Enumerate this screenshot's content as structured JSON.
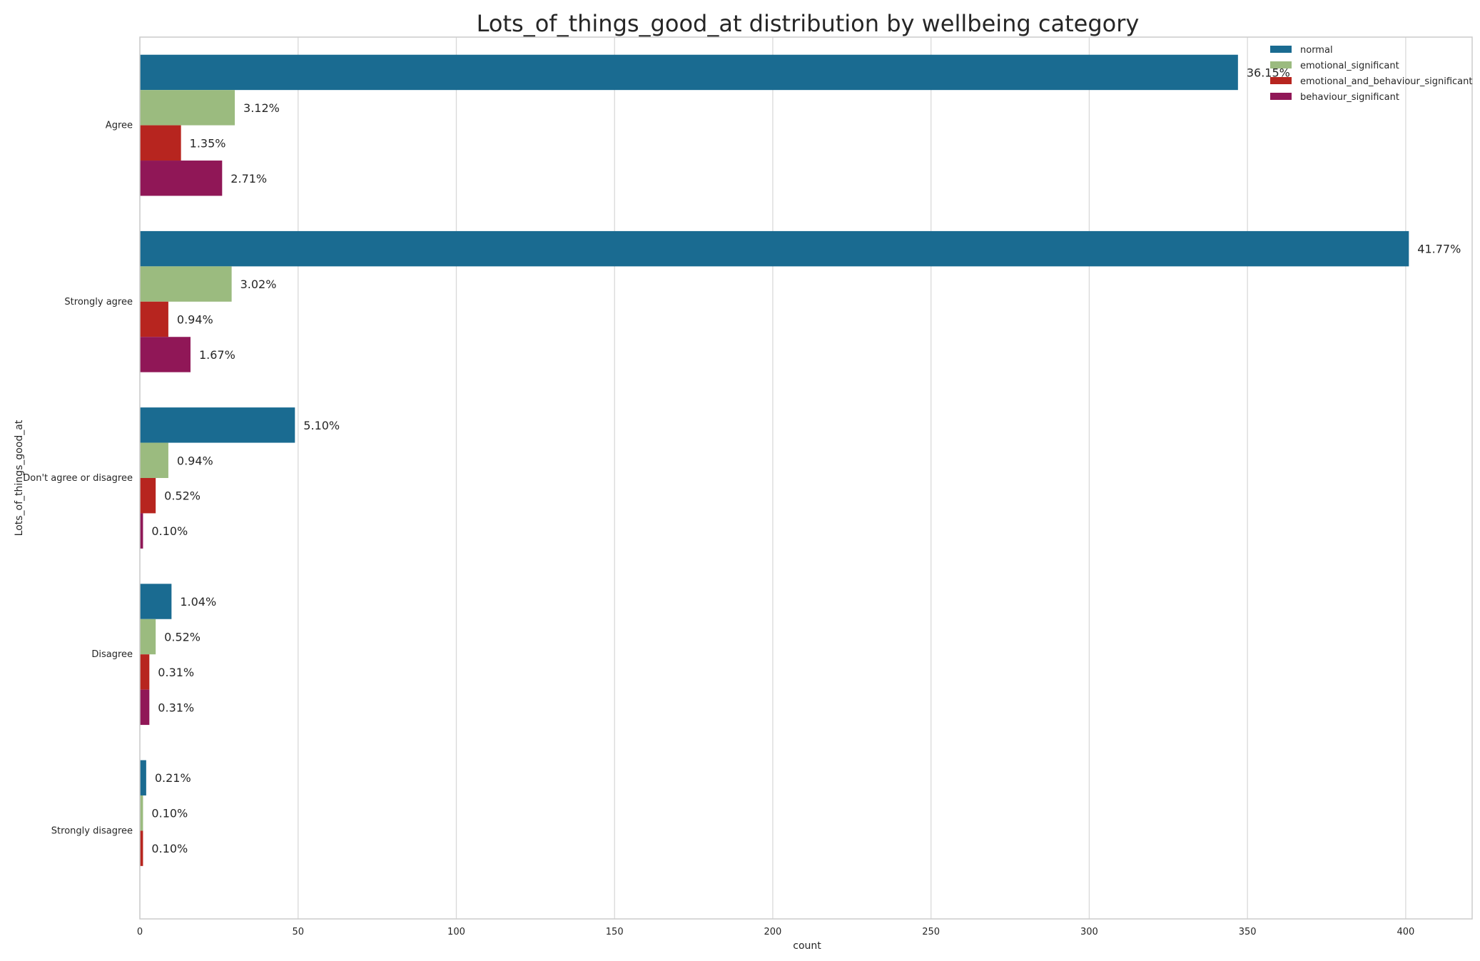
{
  "chart_data": {
    "type": "bar",
    "orientation": "horizontal",
    "title": "Lots_of_things_good_at distribution by wellbeing category",
    "xlabel": "count",
    "ylabel": "Lots_of_things_good_at",
    "xlim": [
      0,
      421
    ],
    "xticks": [
      "0",
      "50",
      "100",
      "150",
      "200",
      "250",
      "300",
      "350",
      "400"
    ],
    "grid": true,
    "legend_position": "top-right",
    "categories": [
      "Agree",
      "Strongly agree",
      "Don't agree or disagree",
      "Disagree",
      "Strongly disagree"
    ],
    "series": [
      {
        "name": "normal",
        "color": "#1a6b91",
        "values": [
          347,
          401,
          49,
          10,
          2
        ],
        "labels": [
          "36.15%",
          "41.77%",
          "5.10%",
          "1.04%",
          "0.21%"
        ]
      },
      {
        "name": "emotional_significant",
        "color": "#9bbb7f",
        "values": [
          30,
          29,
          9,
          5,
          1
        ],
        "labels": [
          "3.12%",
          "3.02%",
          "0.94%",
          "0.52%",
          "0.10%"
        ]
      },
      {
        "name": "emotional_and_behaviour_significant",
        "color": "#b7251f",
        "values": [
          13,
          9,
          5,
          3,
          1
        ],
        "labels": [
          "1.35%",
          "0.94%",
          "0.52%",
          "0.31%",
          "0.10%"
        ]
      },
      {
        "name": "behaviour_significant",
        "color": "#901757",
        "values": [
          26,
          16,
          1,
          3,
          null
        ],
        "labels": [
          "2.71%",
          "1.67%",
          "0.10%",
          "0.31%",
          null
        ]
      }
    ]
  }
}
